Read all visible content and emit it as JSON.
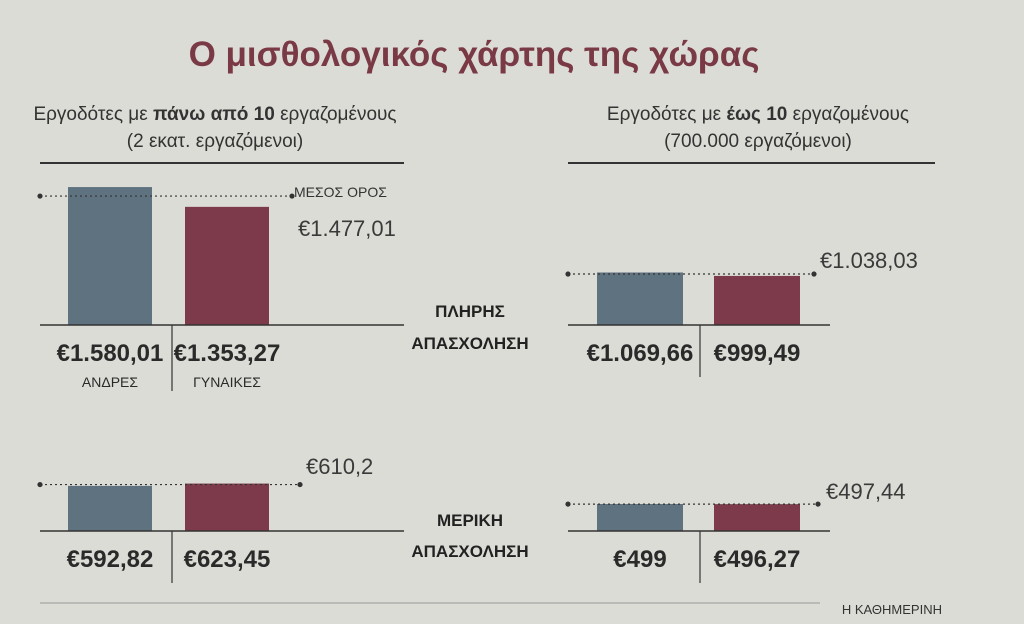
{
  "title": "Ο μισθολογικός χάρτης της χώρας",
  "colors": {
    "background": "#dcdcd7",
    "title": "#7a3a45",
    "men": "#5f7280",
    "women": "#7c3a4b",
    "text": "#2a2a2a",
    "line": "#333333"
  },
  "left_header": {
    "line1_prefix": "Εργοδότες με ",
    "line1_bold": "πάνω από 10",
    "line1_suffix": " εργαζομένους",
    "line2": "(2 εκατ. εργαζόμενοι)"
  },
  "right_header": {
    "line1_prefix": "Εργοδότες με ",
    "line1_bold": "έως 10",
    "line1_suffix": " εργαζομένους",
    "line2": "(700.000 εργαζόμενοι)"
  },
  "average_label": "ΜΕΣΟΣ ΟΡΟΣ",
  "source": "Η ΚΑΘΗΜΕΡΙΝΗ",
  "chart_data": [
    {
      "type": "bar",
      "group": "Εργοδότες με πάνω από 10 εργαζομένους",
      "row": "ΠΛΗΡΗΣ ΑΠΑΣΧΟΛΗΣΗ",
      "categories": [
        "ΑΝΔΡΕΣ",
        "ΓΥΝΑΙΚΕΣ"
      ],
      "values": [
        1580.01,
        1353.27
      ],
      "value_labels": [
        "€1.580,01",
        "€1.353,27"
      ],
      "average": 1477.01,
      "average_label": "€1.477,01"
    },
    {
      "type": "bar",
      "group": "Εργοδότες με έως 10 εργαζομένους",
      "row": "ΠΛΗΡΗΣ ΑΠΑΣΧΟΛΗΣΗ",
      "categories": [
        "",
        ""
      ],
      "values": [
        1069.66,
        999.49
      ],
      "value_labels": [
        "€1.069,66",
        "€999,49"
      ],
      "average": 1038.03,
      "average_label": "€1.038,03"
    },
    {
      "type": "bar",
      "group": "Εργοδότες με πάνω από 10 εργαζομένους",
      "row": "ΜΕΡΙΚΗ ΑΠΑΣΧΟΛΗΣΗ",
      "categories": [
        "",
        ""
      ],
      "values": [
        592.82,
        623.45
      ],
      "value_labels": [
        "€592,82",
        "€623,45"
      ],
      "average": 610.2,
      "average_label": "€610,2"
    },
    {
      "type": "bar",
      "group": "Εργοδότες με έως 10 εργαζομένους",
      "row": "ΜΕΡΙΚΗ ΑΠΑΣΧΟΛΗΣΗ",
      "categories": [
        "",
        ""
      ],
      "values": [
        499,
        496.27
      ],
      "value_labels": [
        "€499",
        "€496,27"
      ],
      "average": 497.44,
      "average_label": "€497,44"
    }
  ],
  "row_labels": {
    "full": [
      "ΠΛΗΡΗΣ",
      "ΑΠΑΣΧΟΛΗΣΗ"
    ],
    "part": [
      "ΜΕΡΙΚΗ",
      "ΑΠΑΣΧΟΛΗΣΗ"
    ]
  }
}
